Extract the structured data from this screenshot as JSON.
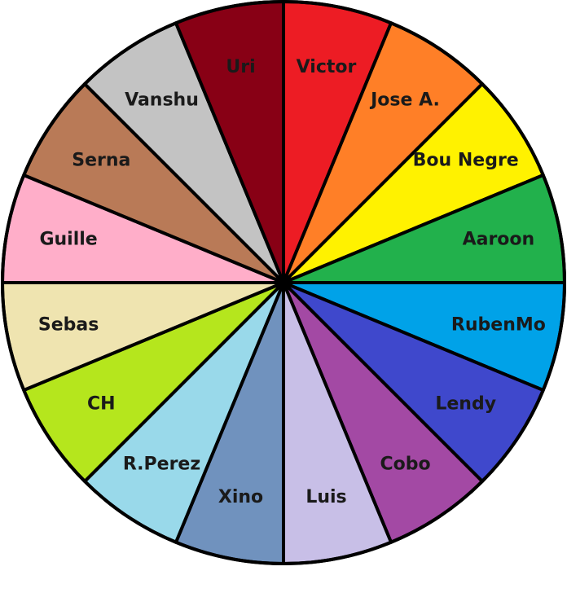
{
  "wheel": {
    "segments": [
      {
        "label": "Victor",
        "color": "#ed1c24"
      },
      {
        "label": "Jose A.",
        "color": "#ff7f27"
      },
      {
        "label": "Bou Negre",
        "color": "#fff200"
      },
      {
        "label": "Aaroon",
        "color": "#22b14c"
      },
      {
        "label": "RubenMo",
        "color": "#00a2e8"
      },
      {
        "label": "Lendy",
        "color": "#3f48cc"
      },
      {
        "label": "Cobo",
        "color": "#a349a4"
      },
      {
        "label": "Luis",
        "color": "#c8bfe7"
      },
      {
        "label": "Xino",
        "color": "#7092be"
      },
      {
        "label": "R.Perez",
        "color": "#99d9ea"
      },
      {
        "label": "CH",
        "color": "#b5e61d"
      },
      {
        "label": "Sebas",
        "color": "#efe4b0"
      },
      {
        "label": "Guille",
        "color": "#ffaec9"
      },
      {
        "label": "Serna",
        "color": "#b97a57"
      },
      {
        "label": "Vanshu",
        "color": "#c3c3c3"
      },
      {
        "label": "Uri",
        "color": "#880015"
      }
    ]
  }
}
